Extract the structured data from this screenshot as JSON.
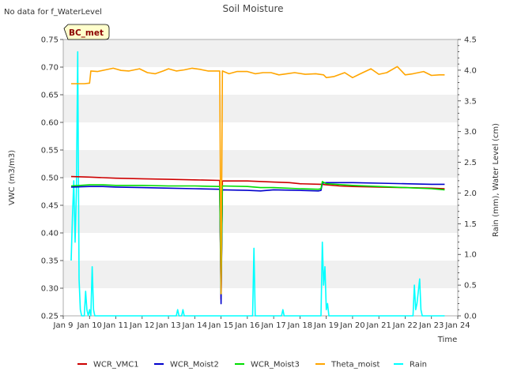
{
  "notice": "No data for f_WaterLevel",
  "site_badge": "BC_met",
  "chart_data": {
    "type": "line",
    "title": "Soil Moisture",
    "xlabel": "Time",
    "ylabel": "VWC (m3/m3)",
    "y2label": "Rain (mm), Water Level (cm)",
    "x_range_days": [
      9,
      24
    ],
    "x_ticks": [
      {
        "day": 9,
        "label": "Jan 9"
      },
      {
        "day": 10,
        "label": "Jan 10"
      },
      {
        "day": 11,
        "label": "Jan 11"
      },
      {
        "day": 12,
        "label": "Jan 12"
      },
      {
        "day": 13,
        "label": "Jan 13"
      },
      {
        "day": 14,
        "label": "Jan 14"
      },
      {
        "day": 15,
        "label": "Jan 15"
      },
      {
        "day": 16,
        "label": "Jan 16"
      },
      {
        "day": 17,
        "label": "Jan 17"
      },
      {
        "day": 18,
        "label": "Jan 18"
      },
      {
        "day": 19,
        "label": "Jan 19"
      },
      {
        "day": 20,
        "label": "Jan 20"
      },
      {
        "day": 21,
        "label": "Jan 21"
      },
      {
        "day": 22,
        "label": "Jan 22"
      },
      {
        "day": 23,
        "label": "Jan 23"
      },
      {
        "day": 24,
        "label": "Jan 24"
      }
    ],
    "ylim": [
      0.25,
      0.75
    ],
    "y_ticks": [
      "0.25",
      "0.30",
      "0.35",
      "0.40",
      "0.45",
      "0.50",
      "0.55",
      "0.60",
      "0.65",
      "0.70",
      "0.75"
    ],
    "y2lim": [
      0,
      4.5
    ],
    "y2_ticks": [
      "0.0",
      "0.5",
      "1.0",
      "1.5",
      "2.0",
      "2.5",
      "3.0",
      "3.5",
      "4.0",
      "4.5"
    ],
    "grid": "alternating horizontal bands",
    "legend_position": "bottom",
    "series": [
      {
        "name": "WCR_VMC1",
        "color": "#cc0000",
        "axis": "left",
        "points": [
          [
            9.3,
            0.502
          ],
          [
            10.0,
            0.501
          ],
          [
            10.5,
            0.5
          ],
          [
            11.0,
            0.499
          ],
          [
            12.0,
            0.498
          ],
          [
            13.0,
            0.497
          ],
          [
            14.0,
            0.496
          ],
          [
            14.95,
            0.495
          ],
          [
            15.0,
            0.28
          ],
          [
            15.05,
            0.494
          ],
          [
            16.0,
            0.494
          ],
          [
            17.0,
            0.492
          ],
          [
            17.6,
            0.491
          ],
          [
            18.0,
            0.489
          ],
          [
            18.8,
            0.488
          ],
          [
            19.0,
            0.487
          ],
          [
            19.5,
            0.485
          ],
          [
            20.0,
            0.484
          ],
          [
            21.0,
            0.483
          ],
          [
            22.0,
            0.482
          ],
          [
            23.0,
            0.481
          ],
          [
            23.5,
            0.48
          ]
        ]
      },
      {
        "name": "WCR_Moist2",
        "color": "#0000cc",
        "axis": "left",
        "points": [
          [
            9.3,
            0.483
          ],
          [
            10.0,
            0.484
          ],
          [
            10.5,
            0.484
          ],
          [
            11.0,
            0.483
          ],
          [
            12.0,
            0.482
          ],
          [
            13.0,
            0.481
          ],
          [
            14.0,
            0.48
          ],
          [
            14.95,
            0.479
          ],
          [
            15.0,
            0.272
          ],
          [
            15.05,
            0.478
          ],
          [
            16.0,
            0.477
          ],
          [
            16.5,
            0.476
          ],
          [
            17.0,
            0.478
          ],
          [
            18.0,
            0.477
          ],
          [
            18.7,
            0.476
          ],
          [
            18.8,
            0.477
          ],
          [
            18.85,
            0.49
          ],
          [
            19.0,
            0.491
          ],
          [
            20.0,
            0.491
          ],
          [
            21.0,
            0.49
          ],
          [
            22.0,
            0.489
          ],
          [
            23.0,
            0.488
          ],
          [
            23.5,
            0.488
          ]
        ]
      },
      {
        "name": "WCR_Moist3",
        "color": "#00dd00",
        "axis": "left",
        "points": [
          [
            9.3,
            0.485
          ],
          [
            10.0,
            0.487
          ],
          [
            10.5,
            0.487
          ],
          [
            11.0,
            0.486
          ],
          [
            12.0,
            0.486
          ],
          [
            13.0,
            0.485
          ],
          [
            14.0,
            0.485
          ],
          [
            14.95,
            0.484
          ],
          [
            15.0,
            0.29
          ],
          [
            15.05,
            0.485
          ],
          [
            16.0,
            0.484
          ],
          [
            16.5,
            0.482
          ],
          [
            17.0,
            0.482
          ],
          [
            18.0,
            0.48
          ],
          [
            18.7,
            0.479
          ],
          [
            18.8,
            0.48
          ],
          [
            18.85,
            0.493
          ],
          [
            19.0,
            0.489
          ],
          [
            20.0,
            0.486
          ],
          [
            21.0,
            0.484
          ],
          [
            22.0,
            0.482
          ],
          [
            23.0,
            0.48
          ],
          [
            23.5,
            0.478
          ]
        ]
      },
      {
        "name": "Theta_moist",
        "color": "#ffa500",
        "axis": "left",
        "points": [
          [
            9.3,
            0.67
          ],
          [
            9.8,
            0.67
          ],
          [
            10.0,
            0.671
          ],
          [
            10.05,
            0.693
          ],
          [
            10.3,
            0.692
          ],
          [
            10.6,
            0.695
          ],
          [
            10.9,
            0.698
          ],
          [
            11.2,
            0.694
          ],
          [
            11.5,
            0.693
          ],
          [
            11.9,
            0.697
          ],
          [
            12.2,
            0.69
          ],
          [
            12.5,
            0.688
          ],
          [
            12.8,
            0.693
          ],
          [
            13.0,
            0.697
          ],
          [
            13.3,
            0.693
          ],
          [
            13.6,
            0.695
          ],
          [
            13.9,
            0.698
          ],
          [
            14.2,
            0.696
          ],
          [
            14.5,
            0.693
          ],
          [
            14.9,
            0.693
          ],
          [
            14.95,
            0.693
          ],
          [
            15.0,
            0.29
          ],
          [
            15.05,
            0.693
          ],
          [
            15.3,
            0.688
          ],
          [
            15.6,
            0.692
          ],
          [
            16.0,
            0.692
          ],
          [
            16.3,
            0.688
          ],
          [
            16.6,
            0.69
          ],
          [
            16.9,
            0.69
          ],
          [
            17.2,
            0.686
          ],
          [
            17.5,
            0.688
          ],
          [
            17.8,
            0.69
          ],
          [
            18.2,
            0.687
          ],
          [
            18.6,
            0.688
          ],
          [
            18.9,
            0.686
          ],
          [
            19.0,
            0.681
          ],
          [
            19.3,
            0.683
          ],
          [
            19.7,
            0.69
          ],
          [
            20.0,
            0.681
          ],
          [
            20.3,
            0.688
          ],
          [
            20.7,
            0.697
          ],
          [
            21.0,
            0.687
          ],
          [
            21.3,
            0.69
          ],
          [
            21.7,
            0.701
          ],
          [
            22.0,
            0.686
          ],
          [
            22.3,
            0.688
          ],
          [
            22.7,
            0.692
          ],
          [
            23.0,
            0.685
          ],
          [
            23.3,
            0.686
          ],
          [
            23.5,
            0.686
          ]
        ]
      },
      {
        "name": "Rain",
        "color": "#00ffff",
        "axis": "right",
        "points": [
          [
            9.3,
            0.9
          ],
          [
            9.35,
            1.6
          ],
          [
            9.4,
            2.2
          ],
          [
            9.45,
            1.2
          ],
          [
            9.5,
            2.0
          ],
          [
            9.55,
            4.3
          ],
          [
            9.6,
            0.6
          ],
          [
            9.65,
            0.1
          ],
          [
            9.7,
            0.0
          ],
          [
            9.8,
            0.0
          ],
          [
            9.85,
            0.4
          ],
          [
            9.9,
            0.1
          ],
          [
            9.95,
            0.0
          ],
          [
            10.0,
            0.1
          ],
          [
            10.05,
            0.0
          ],
          [
            10.1,
            0.8
          ],
          [
            10.15,
            0.1
          ],
          [
            10.2,
            0.0
          ],
          [
            13.3,
            0.0
          ],
          [
            13.35,
            0.1
          ],
          [
            13.4,
            0.0
          ],
          [
            13.5,
            0.0
          ],
          [
            13.55,
            0.1
          ],
          [
            13.6,
            0.0
          ],
          [
            16.2,
            0.0
          ],
          [
            16.25,
            1.1
          ],
          [
            16.3,
            0.0
          ],
          [
            17.3,
            0.0
          ],
          [
            17.35,
            0.1
          ],
          [
            17.4,
            0.0
          ],
          [
            18.8,
            0.0
          ],
          [
            18.85,
            1.2
          ],
          [
            18.9,
            0.5
          ],
          [
            18.95,
            0.8
          ],
          [
            19.0,
            0.1
          ],
          [
            19.05,
            0.2
          ],
          [
            19.1,
            0.0
          ],
          [
            22.3,
            0.0
          ],
          [
            22.35,
            0.5
          ],
          [
            22.4,
            0.1
          ],
          [
            22.45,
            0.2
          ],
          [
            22.5,
            0.4
          ],
          [
            22.55,
            0.6
          ],
          [
            22.6,
            0.1
          ],
          [
            22.65,
            0.0
          ],
          [
            23.5,
            0.0
          ]
        ]
      }
    ]
  }
}
